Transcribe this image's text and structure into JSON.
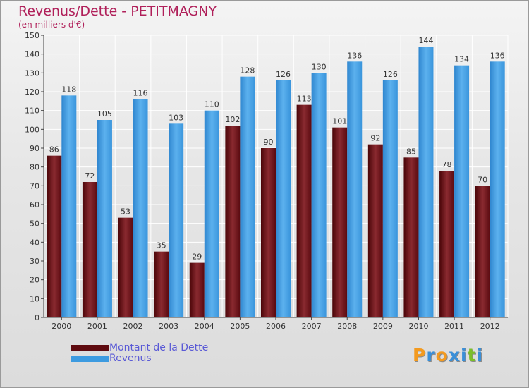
{
  "title": "Revenus/Dette - PETITMAGNY",
  "subtitle": "(en milliers d'€)",
  "chart_data": {
    "type": "bar",
    "categories": [
      "2000",
      "2001",
      "2002",
      "2003",
      "2004",
      "2005",
      "2006",
      "2007",
      "2008",
      "2009",
      "2010",
      "2011",
      "2012"
    ],
    "series": [
      {
        "name": "Montant de la Dette",
        "values": [
          86,
          72,
          53,
          35,
          29,
          102,
          90,
          113,
          101,
          92,
          85,
          78,
          70
        ],
        "color": "#7a1a22"
      },
      {
        "name": "Revenus",
        "values": [
          118,
          105,
          116,
          103,
          110,
          128,
          126,
          130,
          136,
          126,
          144,
          134,
          136
        ],
        "color": "#3d9be0"
      }
    ],
    "ylim": [
      0,
      150
    ],
    "yticks": [
      0,
      10,
      20,
      30,
      40,
      50,
      60,
      70,
      80,
      90,
      100,
      110,
      120,
      130,
      140,
      150
    ],
    "grid": true,
    "legend": "bottom-left"
  },
  "legend": [
    {
      "label": "Montant de la Dette",
      "color": "#5e0a0f"
    },
    {
      "label": "Revenus",
      "color": "#3d9be0"
    }
  ],
  "logo": {
    "letters": [
      {
        "char": "P",
        "color": "#f39a1f"
      },
      {
        "char": "r",
        "color": "#3a8fd8"
      },
      {
        "char": "o",
        "color": "#f39a1f"
      },
      {
        "char": "x",
        "color": "#3a8fd8"
      },
      {
        "char": "i",
        "color": "#3a8fd8"
      },
      {
        "char": "t",
        "color": "#7bbf2a"
      },
      {
        "char": "i",
        "color": "#3a8fd8"
      }
    ]
  }
}
